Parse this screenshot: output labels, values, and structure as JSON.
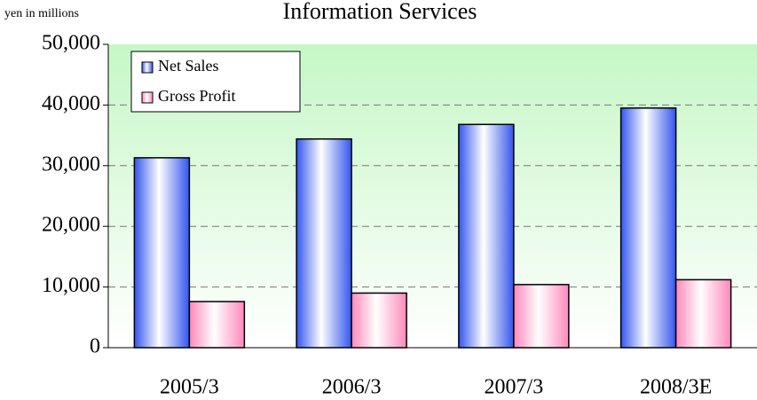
{
  "chart_data": {
    "type": "bar",
    "title": "Information Services",
    "y_label": "yen in millions",
    "categories": [
      "2005/3",
      "2006/3",
      "2007/3",
      "2008/3E"
    ],
    "series": [
      {
        "name": "Net Sales",
        "color": "#3355ee",
        "values": [
          31300,
          34400,
          36800,
          39500
        ]
      },
      {
        "name": "Gross Profit",
        "color": "#ff88bb",
        "values": [
          7600,
          9000,
          10400,
          11200
        ]
      }
    ],
    "ylim": [
      0,
      50000
    ],
    "yticks": [
      0,
      {
        "value": 10000,
        "label": "10,000"
      },
      {
        "value": 20000,
        "label": "20,000"
      },
      {
        "value": 30000,
        "label": "30,000"
      },
      {
        "value": 40000,
        "label": "40,000"
      },
      {
        "value": 50000,
        "label": "50,000"
      }
    ],
    "grid": true,
    "legend": "top-left"
  }
}
